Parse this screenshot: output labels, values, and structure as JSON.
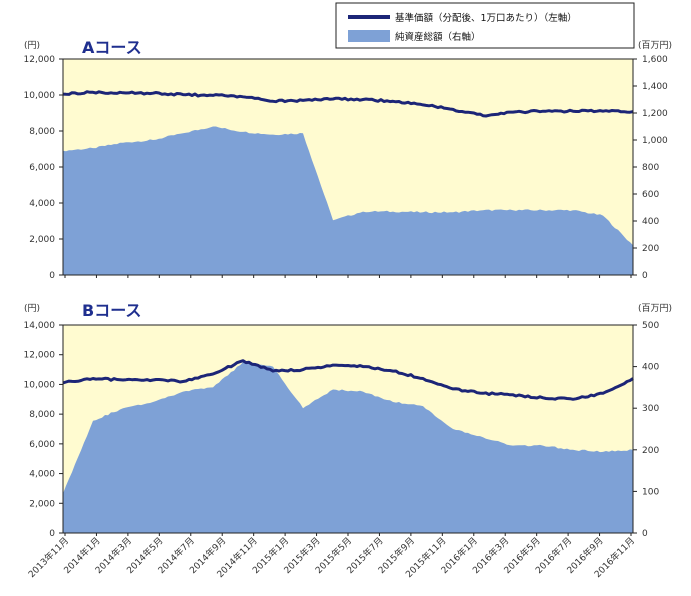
{
  "legend": {
    "nav_label": "基準価額（分配後、1万口あたり）（左軸）",
    "assets_label": "純資産総額（右軸）"
  },
  "colors": {
    "panel_bg": "#fffbd0",
    "area": "#7ea1d6",
    "line": "#1c2577",
    "border": "#222222"
  },
  "x_labels": [
    "2013年11月",
    "2014年1月",
    "2014年3月",
    "2014年5月",
    "2014年7月",
    "2014年9月",
    "2014年11月",
    "2015年1月",
    "2015年3月",
    "2015年5月",
    "2015年7月",
    "2015年9月",
    "2015年11月",
    "2016年1月",
    "2016年3月",
    "2016年5月",
    "2016年7月",
    "2016年9月",
    "2016年11月"
  ],
  "chart_data": [
    {
      "type": "line+area",
      "title": "Aコース",
      "left_unit": "(円)",
      "right_unit": "(百万円)",
      "left_ylim": [
        0,
        12000
      ],
      "left_ticks": [
        "0",
        "2,000",
        "4,000",
        "6,000",
        "8,000",
        "10,000",
        "12,000"
      ],
      "right_ylim": [
        0,
        1600
      ],
      "right_ticks": [
        "0",
        "200",
        "400",
        "600",
        "800",
        "1,000",
        "1,200",
        "1,400",
        "1,600"
      ],
      "x": [
        "2013-11",
        "2014-01",
        "2014-03",
        "2014-05",
        "2014-07",
        "2014-09",
        "2014-11",
        "2015-01",
        "2015-03",
        "2015-05",
        "2015-07",
        "2015-09",
        "2015-11",
        "2016-01",
        "2016-03",
        "2016-05",
        "2016-07",
        "2016-09",
        "2016-11",
        "2016-12"
      ],
      "series": [
        {
          "name": "基準価額（分配後、1万口あたり）（左軸）",
          "axis": "left",
          "kind": "line",
          "values": [
            10050,
            10150,
            10120,
            10100,
            10020,
            9980,
            9900,
            9650,
            9700,
            9780,
            9750,
            9650,
            9450,
            9200,
            8850,
            9050,
            9100,
            9100,
            9100,
            9080
          ]
        },
        {
          "name": "純資産総額（右軸）",
          "axis": "right",
          "kind": "area",
          "values": [
            920,
            940,
            980,
            1000,
            1050,
            1100,
            1060,
            1040,
            1050,
            405,
            470,
            470,
            465,
            465,
            480,
            480,
            480,
            480,
            440,
            220
          ]
        }
      ]
    },
    {
      "type": "line+area",
      "title": "Bコース",
      "left_unit": "(円)",
      "right_unit": "(百万円)",
      "left_ylim": [
        0,
        14000
      ],
      "left_ticks": [
        "0",
        "2,000",
        "4,000",
        "6,000",
        "8,000",
        "10,000",
        "12,000",
        "14,000"
      ],
      "right_ylim": [
        0,
        500
      ],
      "right_ticks": [
        "0",
        "100",
        "200",
        "300",
        "400",
        "500"
      ],
      "x": [
        "2013-11",
        "2014-01",
        "2014-03",
        "2014-05",
        "2014-07",
        "2014-09",
        "2014-11",
        "2015-01",
        "2015-03",
        "2015-05",
        "2015-07",
        "2015-09",
        "2015-11",
        "2016-01",
        "2016-03",
        "2016-05",
        "2016-07",
        "2016-09",
        "2016-11",
        "2016-12"
      ],
      "series": [
        {
          "name": "基準価額（分配後、1万口あたり）（左軸）",
          "axis": "left",
          "kind": "line",
          "values": [
            10100,
            10400,
            10300,
            10300,
            10200,
            10700,
            11600,
            10900,
            11000,
            11300,
            11200,
            10900,
            10400,
            9700,
            9400,
            9300,
            9100,
            9000,
            9400,
            10400
          ]
        },
        {
          "name": "純資産総額（右軸）",
          "axis": "right",
          "kind": "area",
          "values": [
            95,
            270,
            300,
            315,
            340,
            350,
            410,
            400,
            300,
            345,
            340,
            315,
            305,
            250,
            230,
            210,
            210,
            200,
            195,
            200
          ]
        }
      ]
    }
  ]
}
